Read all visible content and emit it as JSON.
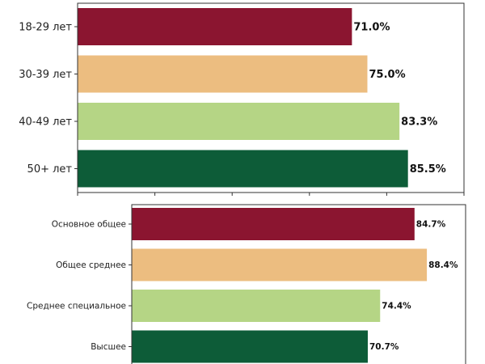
{
  "chart_data": [
    {
      "type": "bar",
      "orientation": "horizontal",
      "title": "",
      "xlabel": "",
      "ylabel": "",
      "xlim": [
        0,
        100
      ],
      "xticks": [
        0,
        20,
        40,
        60,
        80,
        100
      ],
      "categories": [
        "18-29 лет",
        "30-39 лет",
        "40-49 лет",
        "50+ лет"
      ],
      "values": [
        71.0,
        75.0,
        83.3,
        85.5
      ],
      "labels": [
        "71.0%",
        "75.0%",
        "83.3%",
        "85.5%"
      ],
      "colors": [
        "#8b1530",
        "#ecbd80",
        "#b5d585",
        "#0d5c38"
      ]
    },
    {
      "type": "bar",
      "orientation": "horizontal",
      "title": "",
      "xlabel": "",
      "ylabel": "",
      "xlim": [
        0,
        100
      ],
      "categories": [
        "Основное общее",
        "Общее среднее",
        "Среднее специальное",
        "Высшее"
      ],
      "values": [
        84.7,
        88.4,
        74.4,
        70.7
      ],
      "labels": [
        "84.7%",
        "88.4%",
        "74.4%",
        "70.7%"
      ],
      "colors": [
        "#8b1530",
        "#ecbd80",
        "#b5d585",
        "#0d5c38"
      ]
    }
  ]
}
